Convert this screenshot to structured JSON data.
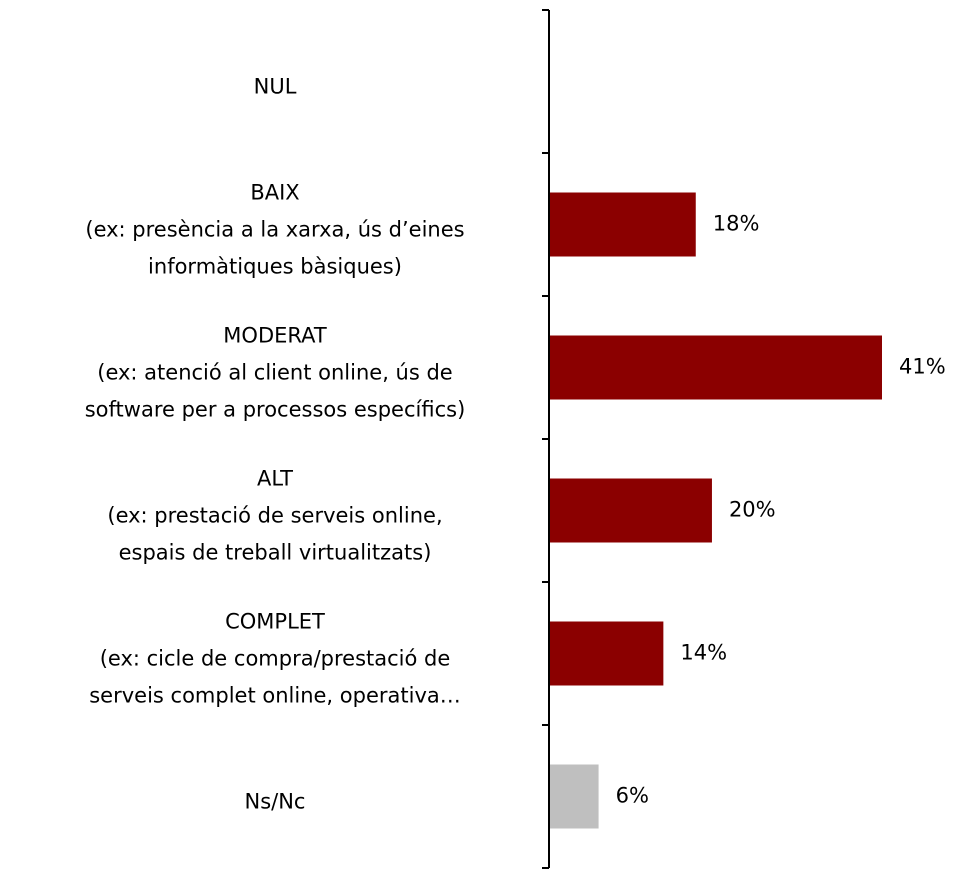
{
  "chart_data": {
    "type": "bar",
    "orientation": "horizontal",
    "categories": [
      [
        "NUL"
      ],
      [
        "BAIX",
        "(ex: presència a la xarxa, ús d’eines",
        "informàtiques bàsiques)"
      ],
      [
        "MODERAT",
        "(ex: atenció al client online, ús de",
        "software per a processos específics)"
      ],
      [
        "ALT",
        "(ex: prestació de serveis online,",
        "espais de treball virtualitzats)"
      ],
      [
        "COMPLET",
        "(ex: cicle de compra/prestació de",
        "serveis complet online, operativa…"
      ],
      [
        "Ns/Nc"
      ]
    ],
    "values": [
      null,
      18,
      41,
      20,
      14,
      6
    ],
    "value_labels": [
      null,
      "18%",
      "41%",
      "20%",
      "14%",
      "6%"
    ],
    "colors": [
      "#8b0000",
      "#8b0000",
      "#8b0000",
      "#8b0000",
      "#8b0000",
      "#bfbfbf"
    ]
  }
}
